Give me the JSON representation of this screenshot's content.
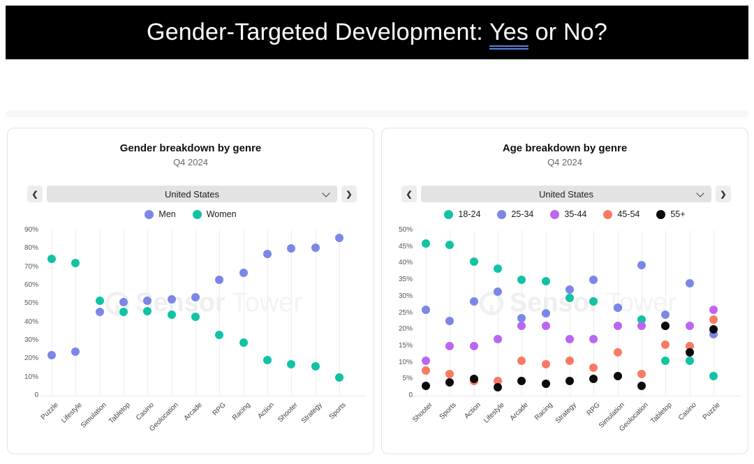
{
  "banner": {
    "title_prefix": "Gender-Targeted Development: ",
    "title_underlined": "Yes",
    "title_suffix": " or No?",
    "background_color": "#000000",
    "underline_color": "#5b82e0"
  },
  "watermark": {
    "bold": "Sensor",
    "light": "Tower"
  },
  "icons": {
    "chevron_left": "❮",
    "chevron_right": "❯",
    "chevron_down": "caret-down"
  },
  "chart_data": [
    {
      "type": "scatter",
      "title": "Gender breakdown by genre",
      "subtitle": "Q4 2024",
      "selector_value": "United States",
      "categories": [
        "Puzzle",
        "Lifestyle",
        "Simulation",
        "Tabletop",
        "Casino",
        "Geolocation",
        "Arcade",
        "RPG",
        "Racing",
        "Action",
        "Shooter",
        "Strategy",
        "Sports"
      ],
      "series": [
        {
          "name": "Men",
          "color": "#7b86e6",
          "values": [
            22,
            24,
            45.5,
            51,
            51.5,
            52.5,
            53.5,
            63,
            67,
            77,
            80,
            80.5,
            86
          ]
        },
        {
          "name": "Women",
          "color": "#10c3a4",
          "values": [
            74.5,
            72,
            51.5,
            45.5,
            46,
            44,
            43,
            33,
            29,
            19.5,
            17,
            16,
            10
          ]
        }
      ],
      "ylim": [
        0,
        90
      ],
      "ytick_step": 10,
      "ytick_format": "percent",
      "grid": "vertical-only",
      "legend_position": "top-center"
    },
    {
      "type": "scatter",
      "title": "Age breakdown by genre",
      "subtitle": "Q4 2024",
      "selector_value": "United States",
      "categories": [
        "Shooter",
        "Sports",
        "Action",
        "Lifestyle",
        "Arcade",
        "Racing",
        "Strategy",
        "RPG",
        "Simulation",
        "Geolocation",
        "Tabletop",
        "Casino",
        "Puzzle"
      ],
      "series": [
        {
          "name": "18-24",
          "color": "#10c3a4",
          "values": [
            46,
            45.5,
            40.5,
            38.5,
            35,
            34.5,
            29.5,
            28.5,
            26.5,
            23,
            10.5,
            10.5,
            6
          ]
        },
        {
          "name": "25-34",
          "color": "#7b86e6",
          "values": [
            26,
            22.5,
            28.5,
            31.5,
            23.5,
            25,
            32,
            35,
            26.5,
            39.5,
            24.5,
            34,
            18.5
          ]
        },
        {
          "name": "35-44",
          "color": "#bb66f0",
          "values": [
            10.5,
            15,
            15,
            17,
            21,
            21,
            17,
            17,
            21,
            21,
            21,
            21,
            26
          ]
        },
        {
          "name": "45-54",
          "color": "#f87a62",
          "values": [
            7.5,
            6.5,
            4.5,
            4.5,
            10.5,
            9.5,
            10.5,
            8.5,
            13,
            6.5,
            15.5,
            15,
            23
          ]
        },
        {
          "name": "55+",
          "color": "#0b0b0b",
          "values": [
            3,
            4,
            5,
            2.5,
            4.5,
            3.5,
            4.5,
            5,
            6,
            3,
            21,
            13,
            20
          ]
        }
      ],
      "ylim": [
        0,
        50
      ],
      "ytick_step": 5,
      "ytick_format": "percent",
      "grid": "vertical-only",
      "legend_position": "top-center"
    }
  ]
}
